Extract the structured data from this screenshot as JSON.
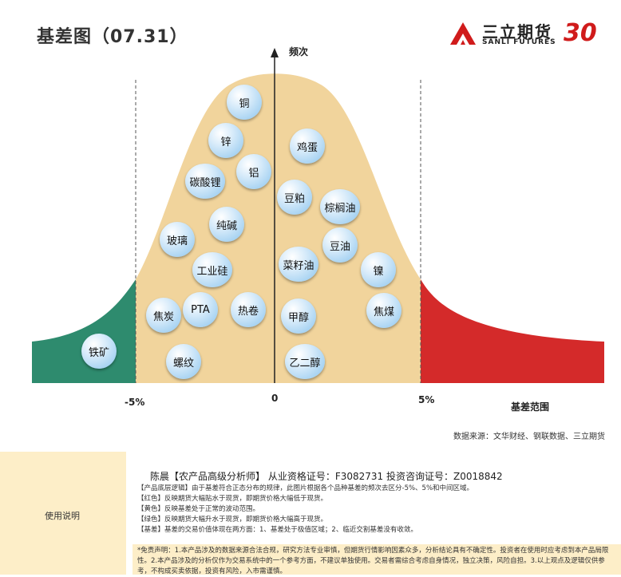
{
  "title": "基差图（07.31）",
  "logo": {
    "name_cn": "三立期货",
    "name_en": "SANLI FUTURES",
    "anniversary": "30"
  },
  "chart_data": {
    "type": "diagram",
    "y_axis_label": "频次",
    "x_axis_label": "基差范围",
    "tick_labels": {
      "left": "-5%",
      "center": "0",
      "right": "5%"
    },
    "zones": [
      {
        "name": "green",
        "color": "#2e8b6e"
      },
      {
        "name": "yellow",
        "color": "#f1d49c"
      },
      {
        "name": "red",
        "color": "#d42a2a"
      }
    ],
    "items": {
      "copper": "铜",
      "zinc": "锌",
      "lithium_carbonate": "碳酸锂",
      "aluminum": "铝",
      "soda_ash": "纯碱",
      "glass": "玻璃",
      "industrial_silicon": "工业硅",
      "coke": "焦炭",
      "pta": "PTA",
      "hot_coil": "热卷",
      "rebar": "螺纹",
      "iron_ore": "铁矿",
      "eggs": "鸡蛋",
      "soybean_meal": "豆粕",
      "palm_oil": "棕榈油",
      "soybean_oil": "豆油",
      "rapeseed_oil": "菜籽油",
      "nickel": "镍",
      "methanol": "甲醇",
      "coking_coal": "焦煤",
      "ethylene_glycol": "乙二醇"
    }
  },
  "source": "数据来源：文华财经、钢联数据、三立期货",
  "panel": {
    "label": "使用说明",
    "analyst": "陈晨【农产品高级分析师】   从业资格证号：F3082731   投资咨询证号：Z0018842",
    "notes": [
      "【产品底层逻辑】由于基差符合正态分布的规律，此图片根据各个品种基差的频次去区分-5%、5%和中间区域。",
      "【红色】反映期货大幅贴水于现货，即期货价格大幅低于现货。",
      "【黄色】反映基差处于正常的波动范围。",
      "【绿色】反映期货大幅升水于现货，即期货价格大幅高于现货。",
      "【基差】基差的交易价值体现在两方面：1、基差处于极值区域；2、临近交割基差没有收敛。"
    ],
    "disclaimer": "*免责声明：1.本产品涉及的数据来源合法合规，研究方法专业审慎，但期货行情影响因素众多，分析结论具有不确定性。投资者在使用时应考虑到本产品局限性。2.本产品涉及的分析仅作为交易系统中的一个参考方面，不建议单独使用。交易者需综合考虑自身情况，独立决策，风险自担。3.以上观点及逻辑仅供参考，不构成买卖依据，投资有风险，入市需谨慎。"
  }
}
